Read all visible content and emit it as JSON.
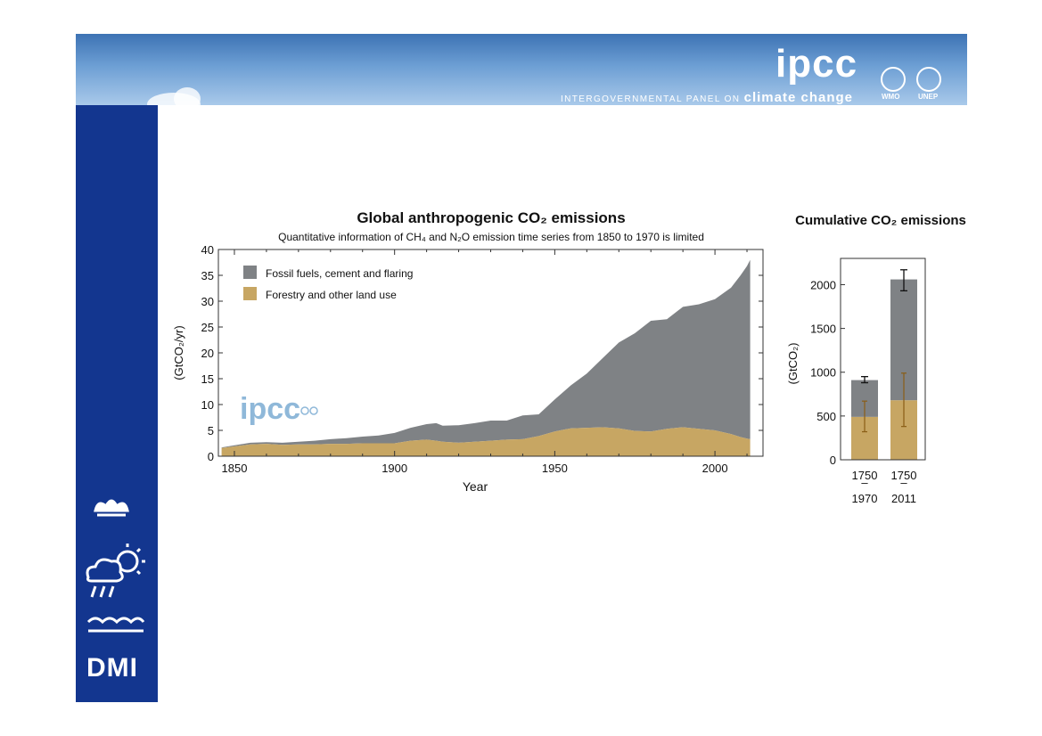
{
  "header": {
    "logo_text": "ipcc",
    "logo_subtitle_prefix": "INTERGOVERNMENTAL PANEL ON ",
    "logo_subtitle_emph": "climate change",
    "org1": "WMO",
    "org2": "UNEP"
  },
  "sidebar": {
    "logo_text": "DMI"
  },
  "colors": {
    "fossil": "#7f8285",
    "land": "#c7a663",
    "errorbar_land": "#8a5e16",
    "sidebar": "#13368f"
  },
  "chart_data": [
    {
      "type": "area",
      "title": "Global anthropogenic CO₂ emissions",
      "subtitle": "Quantitative information of CH₄ and N₂O emission time series from 1850 to 1970 is limited",
      "xlabel": "Year",
      "ylabel": "(GtCO₂/yr)",
      "xlim": [
        1845,
        2015
      ],
      "ylim": [
        0,
        40
      ],
      "xticks": [
        1850,
        1900,
        1950,
        2000
      ],
      "yticks": [
        0,
        5,
        10,
        15,
        20,
        25,
        30,
        35,
        40
      ],
      "legend_position": "top-left",
      "watermark_text": "ipcc",
      "x": [
        1846,
        1850,
        1855,
        1860,
        1865,
        1870,
        1875,
        1880,
        1885,
        1890,
        1895,
        1900,
        1905,
        1910,
        1913,
        1915,
        1920,
        1925,
        1930,
        1935,
        1940,
        1945,
        1950,
        1955,
        1960,
        1965,
        1970,
        1975,
        1980,
        1985,
        1990,
        1995,
        2000,
        2005,
        2008,
        2010,
        2011
      ],
      "series": [
        {
          "name": "Forestry and other land use",
          "values": [
            1.6,
            1.9,
            2.3,
            2.4,
            2.2,
            2.3,
            2.3,
            2.4,
            2.4,
            2.5,
            2.5,
            2.5,
            3.0,
            3.2,
            3.0,
            2.8,
            2.6,
            2.8,
            3.0,
            3.2,
            3.3,
            3.9,
            4.8,
            5.4,
            5.5,
            5.6,
            5.4,
            4.9,
            4.8,
            5.3,
            5.6,
            5.3,
            5.0,
            4.3,
            3.7,
            3.4,
            3.3
          ]
        },
        {
          "name": "Fossil fuels, cement and flaring",
          "values": [
            0.1,
            0.2,
            0.3,
            0.3,
            0.4,
            0.5,
            0.7,
            0.9,
            1.1,
            1.3,
            1.5,
            2.0,
            2.5,
            3.0,
            3.4,
            3.1,
            3.4,
            3.6,
            3.9,
            3.7,
            4.6,
            4.2,
            6.2,
            8.3,
            10.5,
            13.4,
            16.6,
            18.9,
            21.4,
            21.2,
            23.3,
            24.1,
            25.4,
            28.3,
            31.3,
            33.4,
            34.7
          ]
        }
      ]
    },
    {
      "type": "bar",
      "title": "Cumulative CO₂ emissions",
      "ylabel": "(GtCO₂)",
      "ylim": [
        0,
        2300
      ],
      "yticks": [
        0,
        500,
        1000,
        1500,
        2000
      ],
      "categories": [
        [
          "1750",
          "–",
          "1970"
        ],
        [
          "1750",
          "–",
          "2011"
        ]
      ],
      "series": [
        {
          "name": "Forestry and other land use",
          "values": [
            490,
            680
          ],
          "error": [
            [
              320,
              670
            ],
            [
              380,
              990
            ]
          ]
        },
        {
          "name": "Fossil fuels, cement and flaring",
          "values": [
            420,
            1380
          ]
        }
      ],
      "total_error": [
        [
          880,
          950
        ],
        [
          1930,
          2170
        ]
      ]
    }
  ]
}
